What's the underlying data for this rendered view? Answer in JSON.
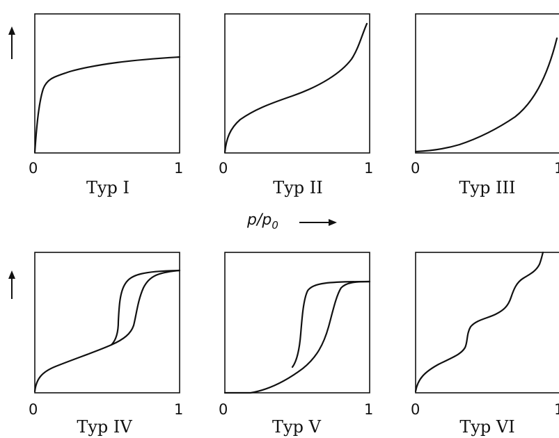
{
  "figure": {
    "x_axis_label": "p/p",
    "x_axis_label_sub": "0",
    "panels": [
      {
        "caption": "Typ I",
        "tick_min": "0",
        "tick_max": "1"
      },
      {
        "caption": "Typ II",
        "tick_min": "0",
        "tick_max": "1"
      },
      {
        "caption": "Typ III",
        "tick_min": "0",
        "tick_max": "1"
      },
      {
        "caption": "Typ IV",
        "tick_min": "0",
        "tick_max": "1"
      },
      {
        "caption": "Typ V",
        "tick_min": "0",
        "tick_max": "1"
      },
      {
        "caption": "Typ VI",
        "tick_min": "0",
        "tick_max": "1"
      }
    ]
  }
}
